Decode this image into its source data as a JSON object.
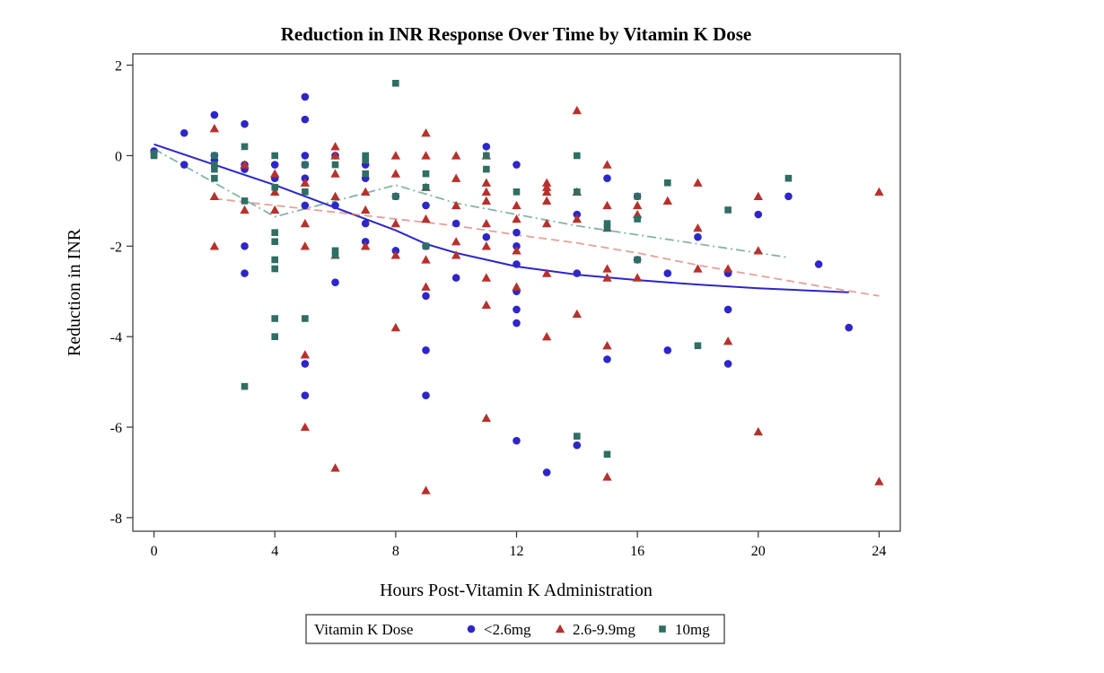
{
  "chart_data": {
    "type": "scatter",
    "title": "Reduction in INR Response Over Time by Vitamin K Dose",
    "xlabel": "Hours Post-Vitamin K Administration",
    "ylabel": "Reduction in INR",
    "xlim": [
      -0.7,
      24.7
    ],
    "ylim": [
      -8.3,
      2.25
    ],
    "x_ticks": [
      0,
      4,
      8,
      12,
      16,
      20,
      24
    ],
    "y_ticks": [
      2,
      0,
      -2,
      -4,
      -6,
      -8
    ],
    "legend_title": "Vitamin K Dose",
    "legend_position": "bottom-center",
    "grid": false,
    "series": [
      {
        "name": "<2.6mg",
        "marker": "circle",
        "color": "#2d26c9",
        "points": [
          [
            0,
            0.1
          ],
          [
            1,
            0.5
          ],
          [
            1,
            -0.2
          ],
          [
            2,
            0.9
          ],
          [
            2,
            -0.1
          ],
          [
            2,
            0
          ],
          [
            3,
            0.7
          ],
          [
            3,
            -0.2
          ],
          [
            3,
            -0.3
          ],
          [
            3,
            -2
          ],
          [
            3,
            -2.6
          ],
          [
            4,
            -0.2
          ],
          [
            4,
            -0.5
          ],
          [
            5,
            1.3
          ],
          [
            5,
            0.8
          ],
          [
            5,
            0
          ],
          [
            5,
            -0.2
          ],
          [
            5,
            -0.5
          ],
          [
            5,
            -1.1
          ],
          [
            5,
            -4.6
          ],
          [
            5,
            -5.3
          ],
          [
            6,
            0
          ],
          [
            6,
            -1.1
          ],
          [
            6,
            -2.8
          ],
          [
            7,
            -0.2
          ],
          [
            7,
            -0.5
          ],
          [
            7,
            -1.5
          ],
          [
            7,
            -1.9
          ],
          [
            8,
            -0.9
          ],
          [
            8,
            -2.1
          ],
          [
            9,
            -1.1
          ],
          [
            9,
            -2
          ],
          [
            9,
            -3.1
          ],
          [
            9,
            -4.3
          ],
          [
            9,
            -5.3
          ],
          [
            10,
            -1.5
          ],
          [
            10,
            -2.7
          ],
          [
            11,
            0.2
          ],
          [
            11,
            -1.8
          ],
          [
            12,
            -0.2
          ],
          [
            12,
            -1.7
          ],
          [
            12,
            -2
          ],
          [
            12,
            -2.4
          ],
          [
            12,
            -3
          ],
          [
            12,
            -3.4
          ],
          [
            12,
            -3.7
          ],
          [
            12,
            -6.3
          ],
          [
            13,
            -7
          ],
          [
            14,
            -1.3
          ],
          [
            14,
            -2.6
          ],
          [
            14,
            -6.4
          ],
          [
            15,
            -0.5
          ],
          [
            15,
            -4.5
          ],
          [
            16,
            -0.9
          ],
          [
            16,
            -2.3
          ],
          [
            17,
            -2.6
          ],
          [
            17,
            -4.3
          ],
          [
            18,
            -1.8
          ],
          [
            19,
            -2.6
          ],
          [
            19,
            -3.4
          ],
          [
            19,
            -4.6
          ],
          [
            20,
            -1.3
          ],
          [
            21,
            -0.9
          ],
          [
            22,
            -2.4
          ],
          [
            23,
            -3.8
          ]
        ],
        "fit_line": {
          "style": "solid",
          "x": [
            0,
            2,
            4,
            6,
            8,
            9,
            10,
            12,
            14,
            16,
            18,
            20,
            23
          ],
          "y": [
            0.25,
            -0.2,
            -0.65,
            -1.15,
            -1.65,
            -1.95,
            -2.15,
            -2.45,
            -2.63,
            -2.75,
            -2.85,
            -2.93,
            -3.02
          ]
        }
      },
      {
        "name": "2.6-9.9mg",
        "marker": "triangle",
        "color": "#b7312c",
        "points": [
          [
            2,
            0.6
          ],
          [
            2,
            -0.9
          ],
          [
            2,
            -2
          ],
          [
            3,
            -0.2
          ],
          [
            3,
            -1.2
          ],
          [
            4,
            -0.4
          ],
          [
            4,
            -0.8
          ],
          [
            4,
            -1.2
          ],
          [
            5,
            -0.6
          ],
          [
            5,
            -1.5
          ],
          [
            5,
            -2
          ],
          [
            5,
            -4.4
          ],
          [
            5,
            -6
          ],
          [
            6,
            0.2
          ],
          [
            6,
            0
          ],
          [
            6,
            -0.4
          ],
          [
            6,
            -0.9
          ],
          [
            6,
            -2.2
          ],
          [
            6,
            -6.9
          ],
          [
            7,
            -0.8
          ],
          [
            7,
            -1.2
          ],
          [
            7,
            -2
          ],
          [
            8,
            0
          ],
          [
            8,
            -0.4
          ],
          [
            8,
            -1.5
          ],
          [
            8,
            -2.2
          ],
          [
            8,
            -3.8
          ],
          [
            9,
            0.5
          ],
          [
            9,
            0
          ],
          [
            9,
            -0.7
          ],
          [
            9,
            -1.4
          ],
          [
            9,
            -2.3
          ],
          [
            9,
            -2.9
          ],
          [
            9,
            -7.4
          ],
          [
            10,
            0
          ],
          [
            10,
            -0.5
          ],
          [
            10,
            -1.1
          ],
          [
            10,
            -1.9
          ],
          [
            10,
            -2.2
          ],
          [
            11,
            0
          ],
          [
            11,
            -0.6
          ],
          [
            11,
            -0.8
          ],
          [
            11,
            -1
          ],
          [
            11,
            -1.5
          ],
          [
            11,
            -2
          ],
          [
            11,
            -2.7
          ],
          [
            11,
            -3.3
          ],
          [
            11,
            -5.8
          ],
          [
            12,
            -1.1
          ],
          [
            12,
            -1.4
          ],
          [
            12,
            -2.1
          ],
          [
            12,
            -2.9
          ],
          [
            13,
            -0.6
          ],
          [
            13,
            -0.7
          ],
          [
            13,
            -0.8
          ],
          [
            13,
            -1
          ],
          [
            13,
            -1.5
          ],
          [
            13,
            -2.6
          ],
          [
            13,
            -4
          ],
          [
            14,
            1
          ],
          [
            14,
            -0.8
          ],
          [
            14,
            -1.4
          ],
          [
            14,
            -3.5
          ],
          [
            15,
            -0.2
          ],
          [
            15,
            -1.1
          ],
          [
            15,
            -1.6
          ],
          [
            15,
            -2.5
          ],
          [
            15,
            -2.7
          ],
          [
            15,
            -4.2
          ],
          [
            15,
            -7.1
          ],
          [
            16,
            -1.1
          ],
          [
            16,
            -1.3
          ],
          [
            16,
            -2.7
          ],
          [
            17,
            -1
          ],
          [
            18,
            -0.6
          ],
          [
            18,
            -1.6
          ],
          [
            18,
            -2.5
          ],
          [
            19,
            -2.5
          ],
          [
            19,
            -4.1
          ],
          [
            20,
            -0.9
          ],
          [
            20,
            -2.1
          ],
          [
            20,
            -6.1
          ],
          [
            24,
            -0.8
          ],
          [
            24,
            -7.2
          ]
        ],
        "fit_line": {
          "style": "dashed",
          "x": [
            2,
            4,
            6,
            8,
            10,
            12,
            14,
            16,
            18,
            20,
            22,
            24
          ],
          "y": [
            -0.95,
            -1.1,
            -1.25,
            -1.4,
            -1.55,
            -1.75,
            -1.93,
            -2.15,
            -2.42,
            -2.65,
            -2.88,
            -3.1
          ]
        }
      },
      {
        "name": "10mg",
        "marker": "square",
        "color": "#2f6e63",
        "points": [
          [
            0,
            0.05
          ],
          [
            0,
            0
          ],
          [
            2,
            0
          ],
          [
            2,
            -0.2
          ],
          [
            2,
            -0.3
          ],
          [
            2,
            -0.5
          ],
          [
            3,
            0.2
          ],
          [
            3,
            -1
          ],
          [
            3,
            -5.1
          ],
          [
            4,
            0
          ],
          [
            4,
            -0.7
          ],
          [
            4,
            -1.7
          ],
          [
            4,
            -1.9
          ],
          [
            4,
            -2.3
          ],
          [
            4,
            -2.5
          ],
          [
            4,
            -3.6
          ],
          [
            4,
            -4
          ],
          [
            5,
            -0.2
          ],
          [
            5,
            -0.8
          ],
          [
            5,
            -3.6
          ],
          [
            6,
            -0.2
          ],
          [
            6,
            -2.1
          ],
          [
            6,
            -2.2
          ],
          [
            7,
            0
          ],
          [
            7,
            -0.1
          ],
          [
            7,
            -0.4
          ],
          [
            8,
            1.6
          ],
          [
            8,
            -0.9
          ],
          [
            9,
            -0.4
          ],
          [
            9,
            -0.7
          ],
          [
            9,
            -2
          ],
          [
            11,
            0
          ],
          [
            11,
            -0.3
          ],
          [
            12,
            -0.8
          ],
          [
            14,
            0
          ],
          [
            14,
            -0.8
          ],
          [
            14,
            -6.2
          ],
          [
            15,
            -1.5
          ],
          [
            15,
            -1.6
          ],
          [
            15,
            -6.6
          ],
          [
            16,
            -0.9
          ],
          [
            16,
            -1.4
          ],
          [
            16,
            -2.3
          ],
          [
            17,
            -0.6
          ],
          [
            18,
            -4.2
          ],
          [
            19,
            -1.2
          ],
          [
            21,
            -0.5
          ]
        ],
        "fit_line": {
          "style": "dash-dot",
          "x": [
            0,
            2,
            4,
            6,
            8,
            10,
            12,
            14,
            16,
            18,
            21
          ],
          "y": [
            0.15,
            -0.6,
            -1.35,
            -1.0,
            -0.65,
            -1.05,
            -1.3,
            -1.55,
            -1.75,
            -1.95,
            -2.25
          ]
        }
      }
    ]
  }
}
